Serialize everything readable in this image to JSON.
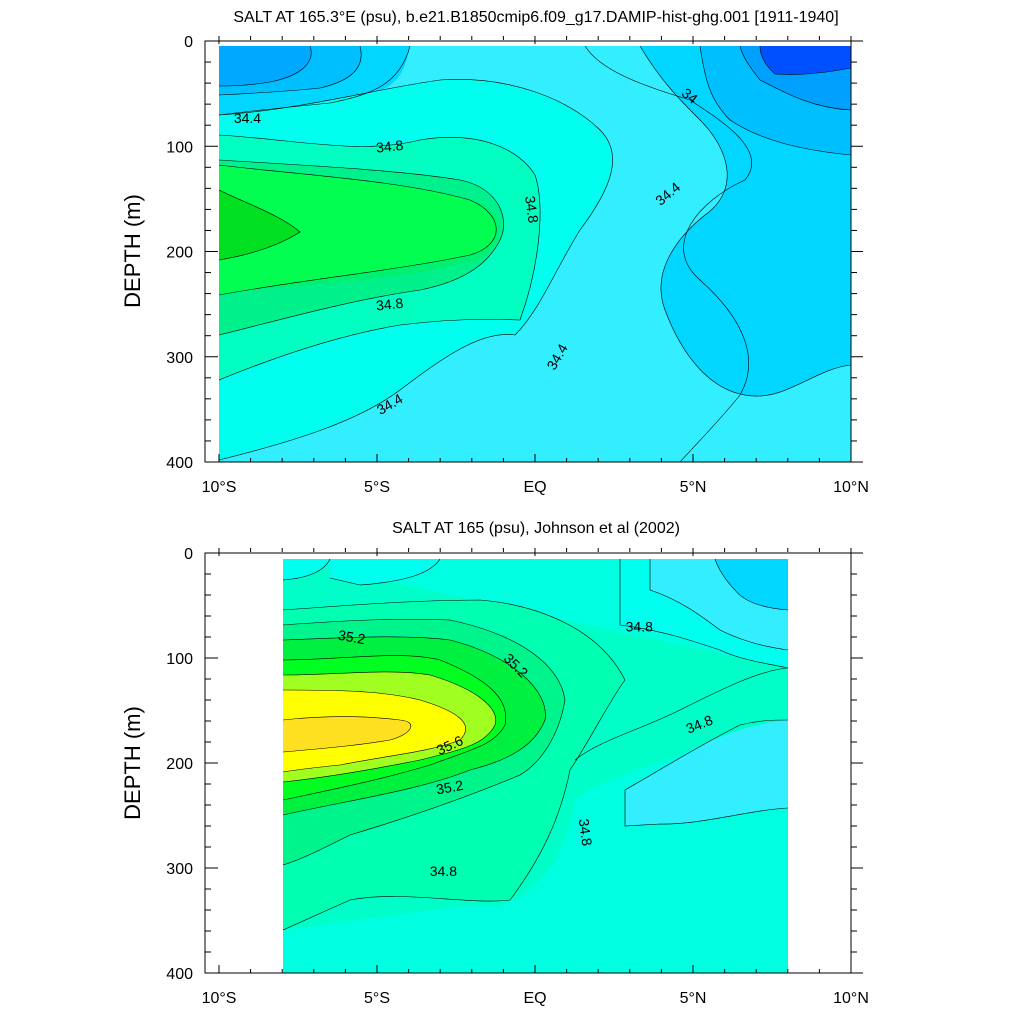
{
  "chart_data": [
    {
      "type": "contour",
      "title": "SALT AT 165.3°E (psu), b.e21.B1850cmip6.f09_g17.DAMIP-hist-ghg.001 [1911-1940]",
      "ylabel": "DEPTH (m)",
      "xlabel": "",
      "xlim": [
        -10,
        10
      ],
      "ylim": [
        400,
        0
      ],
      "x_ticks": [
        -10,
        -5,
        0,
        5,
        10
      ],
      "x_tick_labels": [
        "10°S",
        "5°S",
        "EQ",
        "5°N",
        "10°N"
      ],
      "y_ticks": [
        0,
        100,
        200,
        300,
        400
      ],
      "y_tick_labels": [
        "0",
        "100",
        "200",
        "300",
        "400"
      ],
      "data_extent": {
        "x": [
          -10,
          10
        ],
        "depth": [
          5,
          400
        ]
      },
      "contour_labels": [
        {
          "text": "34.4",
          "x": -9.1,
          "depth": 73,
          "angle": 0
        },
        {
          "text": "34.8",
          "x": -4.6,
          "depth": 100,
          "angle": -6
        },
        {
          "text": "34.8",
          "x": -0.1,
          "depth": 160,
          "angle": 82
        },
        {
          "text": "34",
          "x": 4.9,
          "depth": 52,
          "angle": 38
        },
        {
          "text": "34.4",
          "x": 4.2,
          "depth": 145,
          "angle": -40
        },
        {
          "text": "34.8",
          "x": -4.6,
          "depth": 250,
          "angle": -6
        },
        {
          "text": "34.4",
          "x": 0.7,
          "depth": 300,
          "angle": -60
        },
        {
          "text": "34.4",
          "x": -4.6,
          "depth": 345,
          "angle": -30
        }
      ],
      "colors": {
        "34.0_34.2": "#00bfff",
        "34.2_34.4": "#00d6ff",
        "34.4_34.6": "#33eeff",
        "34.6_34.8": "#00ffee",
        "34.8_35.0": "#00ffc0",
        "35.0_35.2": "#00f080",
        "35.2_35.4": "#00ff40",
        "33.4_33.6": "#0050ff",
        "33.6_33.8": "#0080ff",
        "33.8_34.0": "#00a0ff"
      }
    },
    {
      "type": "contour",
      "title": "SALT AT 165 (psu), Johnson et al (2002)",
      "ylabel": "DEPTH (m)",
      "xlabel": "",
      "xlim": [
        -10,
        10
      ],
      "ylim": [
        400,
        0
      ],
      "x_ticks": [
        -10,
        -5,
        0,
        5,
        10
      ],
      "x_tick_labels": [
        "10°S",
        "5°S",
        "EQ",
        "5°N",
        "10°N"
      ],
      "y_ticks": [
        0,
        100,
        200,
        300,
        400
      ],
      "y_tick_labels": [
        "0",
        "100",
        "200",
        "300",
        "400"
      ],
      "data_extent": {
        "x": [
          -8,
          8
        ],
        "depth": [
          5,
          400
        ]
      },
      "contour_labels": [
        {
          "text": "35.2",
          "x": -5.8,
          "depth": 80,
          "angle": 10
        },
        {
          "text": "35.2",
          "x": -0.6,
          "depth": 107,
          "angle": 45
        },
        {
          "text": "34.8",
          "x": 3.3,
          "depth": 70,
          "angle": 0
        },
        {
          "text": "35.6",
          "x": -2.7,
          "depth": 183,
          "angle": -25
        },
        {
          "text": "34.8",
          "x": 5.2,
          "depth": 163,
          "angle": -22
        },
        {
          "text": "35.2",
          "x": -2.7,
          "depth": 223,
          "angle": -10
        },
        {
          "text": "34.8",
          "x": 1.6,
          "depth": 266,
          "angle": 82
        },
        {
          "text": "34.8",
          "x": -2.9,
          "depth": 303,
          "angle": 0
        }
      ],
      "colors": {
        "34.2_34.4": "#00d6ff",
        "34.4_34.6": "#33eeff",
        "34.6_34.8": "#00ffee",
        "34.8_35.0": "#00ffc0",
        "35.0_35.2": "#00f090",
        "35.2_35.4": "#00ff40",
        "35.4_35.6": "#a0ff20",
        "35.6_35.8": "#ffff00",
        "35.8_36.0": "#ffe020"
      }
    }
  ]
}
